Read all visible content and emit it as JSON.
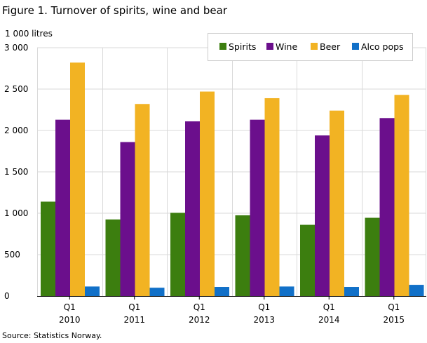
{
  "title": "Figure 1. Turnover of spirits, wine and bear",
  "source": "Source: Statistics Norway.",
  "chart_data": {
    "type": "bar",
    "unit_label": "1 000 litres",
    "categories": [
      {
        "quarter": "Q1",
        "year": "2010"
      },
      {
        "quarter": "Q1",
        "year": "2011"
      },
      {
        "quarter": "Q1",
        "year": "2012"
      },
      {
        "quarter": "Q1",
        "year": "2013"
      },
      {
        "quarter": "Q1",
        "year": "2014"
      },
      {
        "quarter": "Q1",
        "year": "2015"
      }
    ],
    "series": [
      {
        "name": "Spirits",
        "color": "#3c7e0f",
        "values": [
          1140,
          925,
          1005,
          975,
          860,
          945
        ]
      },
      {
        "name": "Wine",
        "color": "#6b0f8c",
        "values": [
          2130,
          1860,
          2110,
          2130,
          1940,
          2150
        ]
      },
      {
        "name": "Beer",
        "color": "#f2b323",
        "values": [
          2820,
          2320,
          2470,
          2390,
          2240,
          2430
        ]
      },
      {
        "name": "Alco pops",
        "color": "#1170c8",
        "values": [
          115,
          100,
          110,
          115,
          110,
          135
        ]
      }
    ],
    "ylim": [
      0,
      3000
    ],
    "yticks": [
      0,
      500,
      1000,
      1500,
      2000,
      2500,
      3000
    ],
    "ytick_labels": [
      "0",
      "500",
      "1 000",
      "1 500",
      "2 000",
      "2 500",
      "3 000"
    ],
    "grid": true,
    "legend_position": "top-right"
  }
}
